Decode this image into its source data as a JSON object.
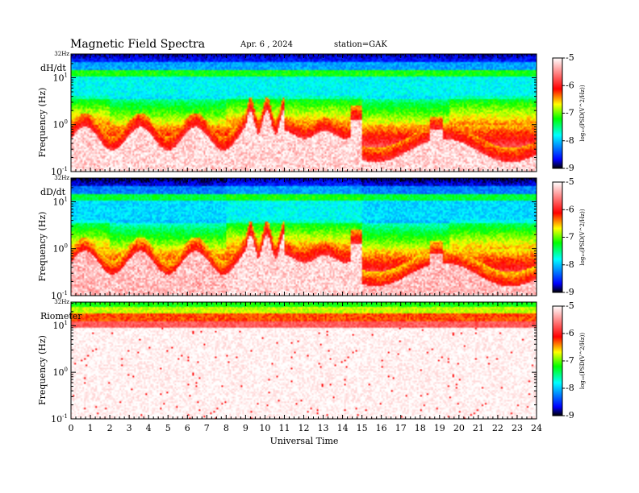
{
  "header": {
    "title": "Magnetic  Field  Spectra",
    "date": "Apr. 6  , 2024",
    "station": "station=GAK"
  },
  "colors": {
    "colormap": [
      "#000000",
      "#0000ff",
      "#00ffff",
      "#00ff00",
      "#ffff00",
      "#ff0000",
      "#ffffff"
    ]
  },
  "chart_data": [
    {
      "type": "heatmap",
      "panel_label": "dH/dt",
      "ylabel": "Frequency  (Hz)",
      "top_label": "32Hz",
      "yticks": [
        {
          "base": "10",
          "exp": "-1",
          "value": 0.1
        },
        {
          "base": "10",
          "exp": "0",
          "value": 1
        },
        {
          "base": "10",
          "exp": "1",
          "value": 10
        }
      ],
      "ylim": [
        0.1,
        32
      ],
      "yscale": "log",
      "xlim": [
        0,
        24
      ],
      "colorbar": {
        "label": "log₁₀(PSD(V^2/Hz))",
        "range": [
          -9,
          -5
        ],
        "ticks": [
          "-5",
          "-6",
          "-7",
          "-8",
          "-9"
        ]
      }
    },
    {
      "type": "heatmap",
      "panel_label": "dD/dt",
      "ylabel": "Frequency  (Hz)",
      "top_label": "32Hz",
      "yticks": [
        {
          "base": "10",
          "exp": "-1",
          "value": 0.1
        },
        {
          "base": "10",
          "exp": "0",
          "value": 1
        },
        {
          "base": "10",
          "exp": "1",
          "value": 10
        }
      ],
      "ylim": [
        0.1,
        32
      ],
      "yscale": "log",
      "xlim": [
        0,
        24
      ],
      "colorbar": {
        "label": "log₁₀(PSD(V^2/Hz))",
        "range": [
          -9,
          -5
        ],
        "ticks": [
          "-5",
          "-6",
          "-7",
          "-8",
          "-9"
        ]
      }
    },
    {
      "type": "heatmap",
      "panel_label": "Riometer",
      "ylabel": "Frequency  (Hz)",
      "top_label": "32Hz",
      "yticks": [
        {
          "base": "10",
          "exp": "-1",
          "value": 0.1
        },
        {
          "base": "10",
          "exp": "0",
          "value": 1
        },
        {
          "base": "10",
          "exp": "1",
          "value": 10
        }
      ],
      "ylim": [
        0.1,
        32
      ],
      "yscale": "log",
      "xlim": [
        0,
        24
      ],
      "xlabel": "Universal  Time",
      "xticks": [
        "0",
        "1",
        "2",
        "3",
        "4",
        "5",
        "6",
        "7",
        "8",
        "9",
        "10",
        "11",
        "12",
        "13",
        "14",
        "15",
        "16",
        "17",
        "18",
        "19",
        "20",
        "21",
        "22",
        "23",
        "24"
      ],
      "colorbar": {
        "label": "log₁₀(PSD(V^2/Hz))",
        "range": [
          -9,
          -5
        ],
        "ticks": [
          "-5",
          "-6",
          "-7",
          "-8",
          "-9"
        ]
      }
    }
  ]
}
